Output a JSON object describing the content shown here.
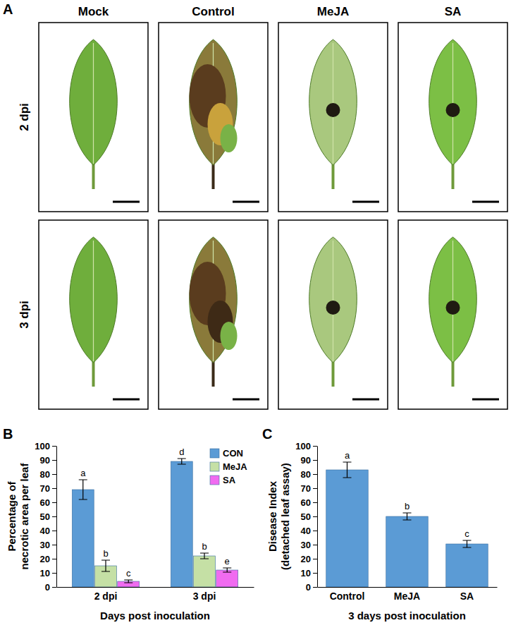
{
  "panel_a": {
    "label": "A",
    "columns": [
      "Mock",
      "Control",
      "MeJA",
      "SA"
    ],
    "rows": [
      "2 dpi",
      "3 dpi"
    ]
  },
  "chart_data": [
    {
      "panel": "B",
      "type": "bar",
      "categories": [
        "2 dpi",
        "3 dpi"
      ],
      "series": [
        {
          "name": "CON",
          "color": "#5b9bd5",
          "values": [
            69,
            89
          ],
          "errors": [
            7,
            2
          ],
          "letters": [
            "a",
            "d"
          ]
        },
        {
          "name": "MeJA",
          "color": "#c5e0a5",
          "values": [
            15,
            22
          ],
          "errors": [
            4,
            2
          ],
          "letters": [
            "b",
            "b"
          ]
        },
        {
          "name": "SA",
          "color": "#f06bf0",
          "values": [
            4,
            12
          ],
          "errors": [
            1,
            1.5
          ],
          "letters": [
            "c",
            "e"
          ]
        }
      ],
      "xlabel": "Days post inoculation",
      "ylabel": [
        "Percentage of",
        "necrotic area per leaf"
      ],
      "ylim": [
        0,
        100
      ],
      "yticks": [
        0,
        10,
        20,
        30,
        40,
        50,
        60,
        70,
        80,
        90,
        100
      ],
      "legend": "top-right"
    },
    {
      "panel": "C",
      "type": "bar",
      "categories": [
        "Control",
        "MeJA",
        "SA"
      ],
      "values": [
        83,
        50,
        30.5
      ],
      "errors": [
        5.5,
        2.5,
        2.5
      ],
      "letters": [
        "a",
        "b",
        "c"
      ],
      "color": "#5b9bd5",
      "xlabel": "3 days post inoculation",
      "ylabel": [
        "Disease Index",
        "(detached leaf assay)"
      ],
      "ylim": [
        0,
        100
      ],
      "yticks": [
        0,
        10,
        20,
        30,
        40,
        50,
        60,
        70,
        80,
        90,
        100
      ]
    }
  ]
}
